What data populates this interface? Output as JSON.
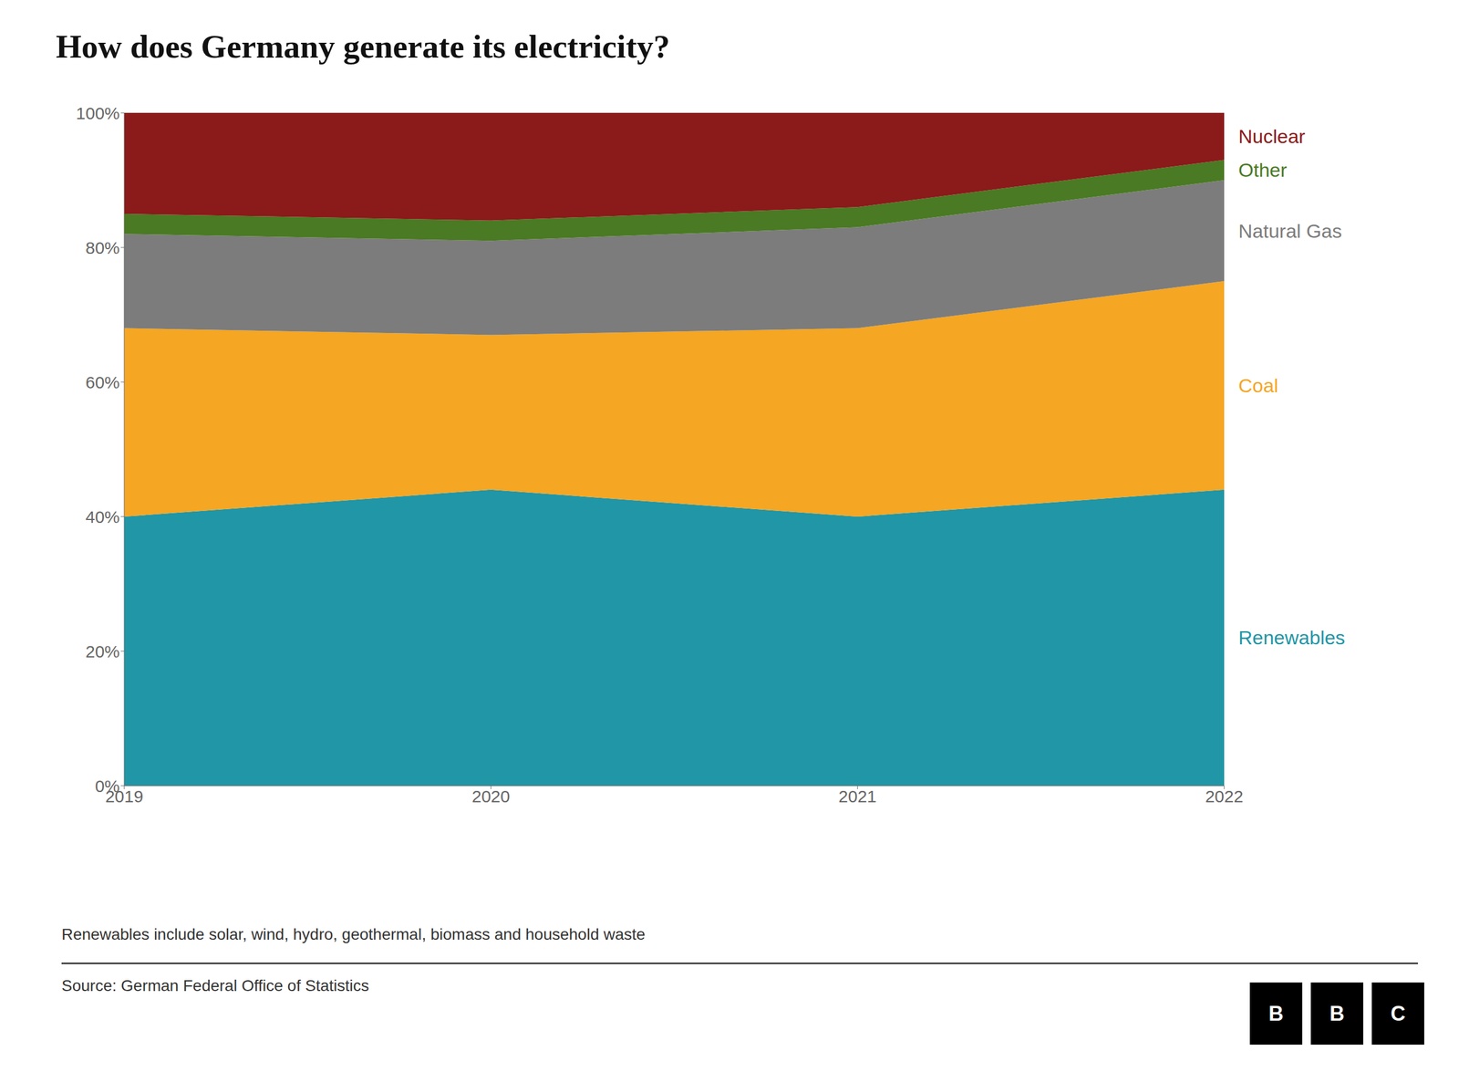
{
  "chart_data": {
    "type": "area",
    "title": "How does Germany generate its electricity?",
    "x": [
      2019,
      2020,
      2021,
      2022
    ],
    "series": [
      {
        "name": "Renewables",
        "color": "#2196A6",
        "values": [
          40,
          44,
          40,
          44
        ]
      },
      {
        "name": "Coal",
        "color": "#F5A623",
        "values": [
          28,
          23,
          28,
          31
        ]
      },
      {
        "name": "Natural Gas",
        "color": "#7C7C7C",
        "values": [
          14,
          14,
          15,
          15
        ]
      },
      {
        "name": "Other",
        "color": "#4A7A23",
        "values": [
          3,
          3,
          3,
          3
        ]
      },
      {
        "name": "Nuclear",
        "color": "#8B1A1A",
        "values": [
          15,
          16,
          14,
          7
        ]
      }
    ],
    "xlim": [
      2019,
      2022
    ],
    "xticks": [
      2019,
      2020,
      2021,
      2022
    ],
    "ylim": [
      0,
      100
    ],
    "yticks": [
      {
        "value": 0,
        "label": "0%"
      },
      {
        "value": 20,
        "label": "20%"
      },
      {
        "value": 40,
        "label": "40%"
      },
      {
        "value": 60,
        "label": "60%"
      },
      {
        "value": 80,
        "label": "80%"
      },
      {
        "value": 100,
        "label": "100%"
      }
    ],
    "grid": true,
    "stacked": true,
    "legend": "right",
    "annotations": [
      "Renewables include solar, wind, hydro, geothermal, biomass and household waste",
      "Source: German Federal Office of Statistics",
      "BBC"
    ]
  }
}
